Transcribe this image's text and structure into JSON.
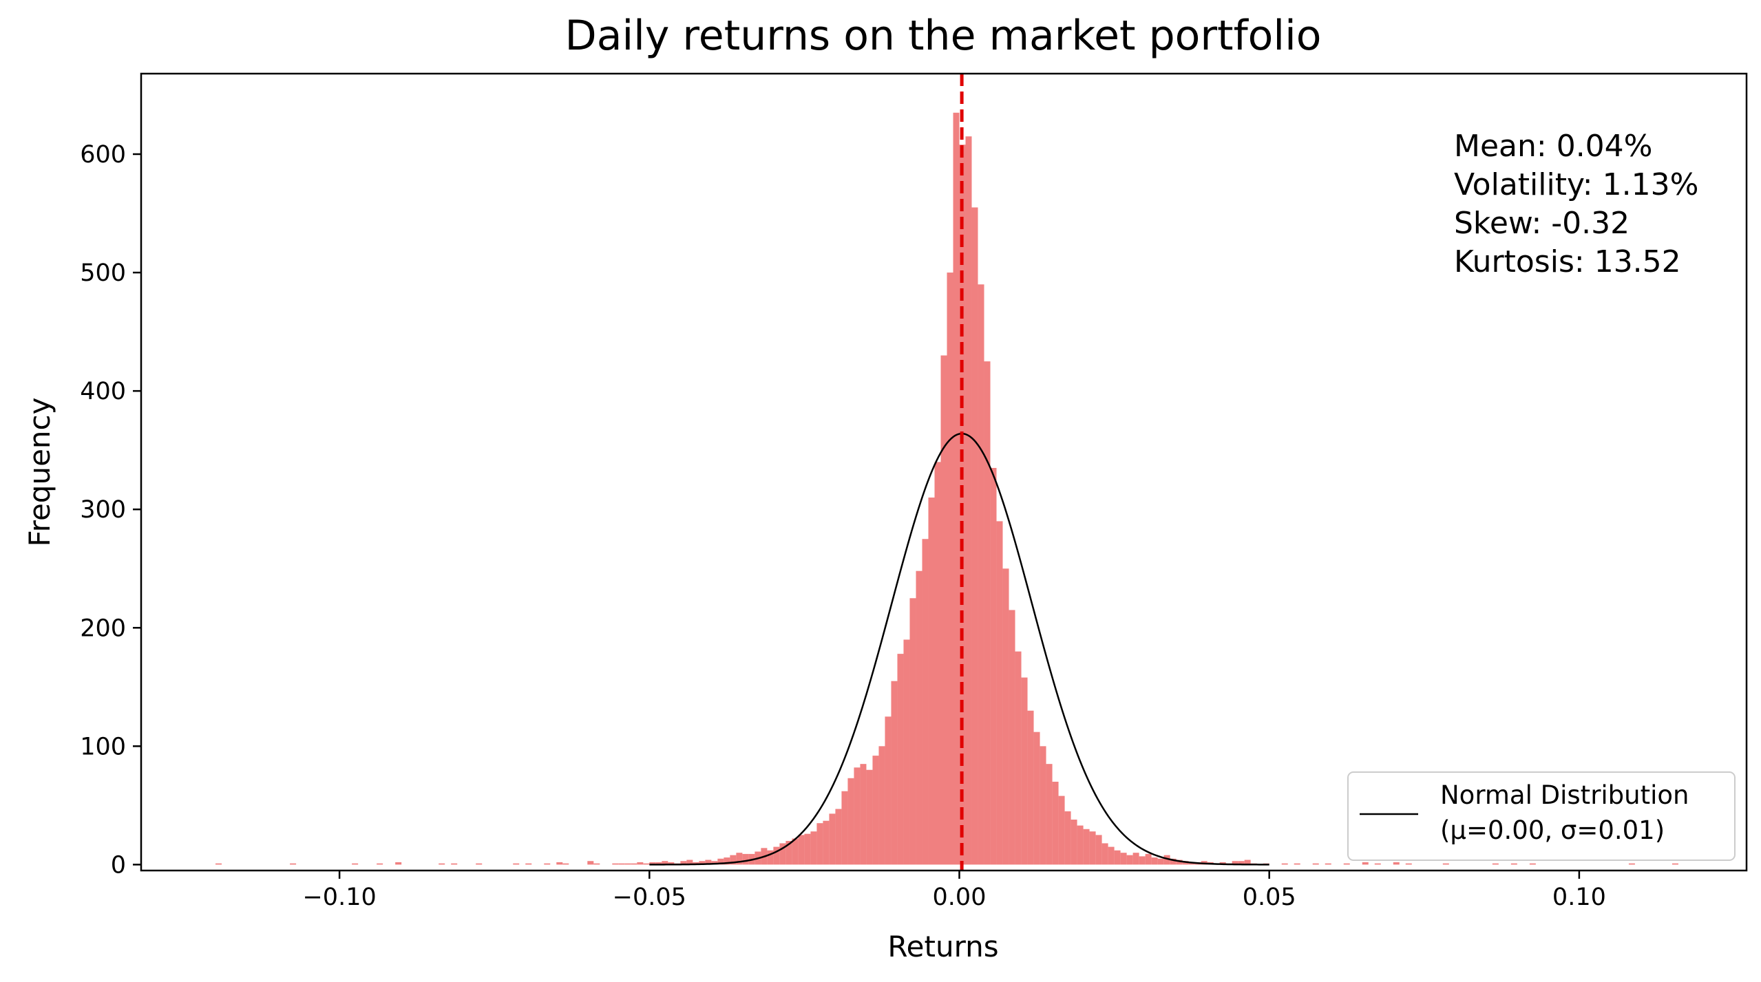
{
  "chart_data": {
    "type": "bar",
    "title": "Daily returns on the market portfolio",
    "xlabel": "Returns",
    "ylabel": "Frequency",
    "xlim": [
      -0.132,
      0.127
    ],
    "ylim": [
      -5,
      668
    ],
    "xticks": [
      {
        "value": -0.1,
        "label": "−0.10"
      },
      {
        "value": -0.05,
        "label": "−0.05"
      },
      {
        "value": 0.0,
        "label": "0.00"
      },
      {
        "value": 0.05,
        "label": "0.05"
      },
      {
        "value": 0.1,
        "label": "0.10"
      }
    ],
    "yticks": [
      {
        "value": 0,
        "label": "0"
      },
      {
        "value": 100,
        "label": "100"
      },
      {
        "value": 200,
        "label": "200"
      },
      {
        "value": 300,
        "label": "300"
      },
      {
        "value": 400,
        "label": "400"
      },
      {
        "value": 500,
        "label": "500"
      },
      {
        "value": 600,
        "label": "600"
      }
    ],
    "grid": false,
    "bar_color": "#f08080",
    "histogram": {
      "bin_width": 0.001,
      "bins": [
        {
          "x": -0.12,
          "count": 1
        },
        {
          "x": -0.108,
          "count": 1
        },
        {
          "x": -0.098,
          "count": 1
        },
        {
          "x": -0.094,
          "count": 1
        },
        {
          "x": -0.091,
          "count": 2
        },
        {
          "x": -0.084,
          "count": 1
        },
        {
          "x": -0.082,
          "count": 1
        },
        {
          "x": -0.078,
          "count": 1
        },
        {
          "x": -0.072,
          "count": 1
        },
        {
          "x": -0.07,
          "count": 1
        },
        {
          "x": -0.067,
          "count": 1
        },
        {
          "x": -0.065,
          "count": 2
        },
        {
          "x": -0.064,
          "count": 1
        },
        {
          "x": -0.06,
          "count": 3
        },
        {
          "x": -0.059,
          "count": 1
        },
        {
          "x": -0.056,
          "count": 1
        },
        {
          "x": -0.055,
          "count": 1
        },
        {
          "x": -0.054,
          "count": 1
        },
        {
          "x": -0.053,
          "count": 1
        },
        {
          "x": -0.052,
          "count": 2
        },
        {
          "x": -0.051,
          "count": 1
        },
        {
          "x": -0.05,
          "count": 2
        },
        {
          "x": -0.049,
          "count": 2
        },
        {
          "x": -0.048,
          "count": 3
        },
        {
          "x": -0.047,
          "count": 2
        },
        {
          "x": -0.046,
          "count": 1
        },
        {
          "x": -0.045,
          "count": 3
        },
        {
          "x": -0.044,
          "count": 4
        },
        {
          "x": -0.043,
          "count": 2
        },
        {
          "x": -0.042,
          "count": 3
        },
        {
          "x": -0.041,
          "count": 4
        },
        {
          "x": -0.04,
          "count": 3
        },
        {
          "x": -0.039,
          "count": 5
        },
        {
          "x": -0.038,
          "count": 6
        },
        {
          "x": -0.037,
          "count": 8
        },
        {
          "x": -0.036,
          "count": 10
        },
        {
          "x": -0.035,
          "count": 9
        },
        {
          "x": -0.034,
          "count": 9
        },
        {
          "x": -0.033,
          "count": 11
        },
        {
          "x": -0.032,
          "count": 14
        },
        {
          "x": -0.031,
          "count": 12
        },
        {
          "x": -0.03,
          "count": 15
        },
        {
          "x": -0.029,
          "count": 18
        },
        {
          "x": -0.028,
          "count": 20
        },
        {
          "x": -0.027,
          "count": 22
        },
        {
          "x": -0.026,
          "count": 25
        },
        {
          "x": -0.025,
          "count": 26
        },
        {
          "x": -0.024,
          "count": 28
        },
        {
          "x": -0.023,
          "count": 35
        },
        {
          "x": -0.022,
          "count": 37
        },
        {
          "x": -0.021,
          "count": 43
        },
        {
          "x": -0.02,
          "count": 47
        },
        {
          "x": -0.019,
          "count": 62
        },
        {
          "x": -0.018,
          "count": 73
        },
        {
          "x": -0.017,
          "count": 82
        },
        {
          "x": -0.016,
          "count": 85
        },
        {
          "x": -0.015,
          "count": 80
        },
        {
          "x": -0.014,
          "count": 92
        },
        {
          "x": -0.013,
          "count": 100
        },
        {
          "x": -0.012,
          "count": 125
        },
        {
          "x": -0.011,
          "count": 155
        },
        {
          "x": -0.01,
          "count": 178
        },
        {
          "x": -0.009,
          "count": 190
        },
        {
          "x": -0.008,
          "count": 225
        },
        {
          "x": -0.007,
          "count": 248
        },
        {
          "x": -0.006,
          "count": 275
        },
        {
          "x": -0.005,
          "count": 310
        },
        {
          "x": -0.004,
          "count": 340
        },
        {
          "x": -0.003,
          "count": 430
        },
        {
          "x": -0.002,
          "count": 500
        },
        {
          "x": -0.001,
          "count": 635
        },
        {
          "x": 0.0,
          "count": 608
        },
        {
          "x": 0.001,
          "count": 615
        },
        {
          "x": 0.002,
          "count": 555
        },
        {
          "x": 0.003,
          "count": 490
        },
        {
          "x": 0.004,
          "count": 425
        },
        {
          "x": 0.005,
          "count": 335
        },
        {
          "x": 0.006,
          "count": 290
        },
        {
          "x": 0.007,
          "count": 250
        },
        {
          "x": 0.008,
          "count": 215
        },
        {
          "x": 0.009,
          "count": 180
        },
        {
          "x": 0.01,
          "count": 158
        },
        {
          "x": 0.011,
          "count": 130
        },
        {
          "x": 0.012,
          "count": 112
        },
        {
          "x": 0.013,
          "count": 100
        },
        {
          "x": 0.014,
          "count": 85
        },
        {
          "x": 0.015,
          "count": 70
        },
        {
          "x": 0.016,
          "count": 58
        },
        {
          "x": 0.017,
          "count": 45
        },
        {
          "x": 0.018,
          "count": 38
        },
        {
          "x": 0.019,
          "count": 33
        },
        {
          "x": 0.02,
          "count": 30
        },
        {
          "x": 0.021,
          "count": 28
        },
        {
          "x": 0.022,
          "count": 25
        },
        {
          "x": 0.023,
          "count": 18
        },
        {
          "x": 0.024,
          "count": 15
        },
        {
          "x": 0.025,
          "count": 12
        },
        {
          "x": 0.026,
          "count": 10
        },
        {
          "x": 0.027,
          "count": 8
        },
        {
          "x": 0.028,
          "count": 10
        },
        {
          "x": 0.029,
          "count": 7
        },
        {
          "x": 0.03,
          "count": 9
        },
        {
          "x": 0.031,
          "count": 6
        },
        {
          "x": 0.032,
          "count": 5
        },
        {
          "x": 0.033,
          "count": 8
        },
        {
          "x": 0.034,
          "count": 5
        },
        {
          "x": 0.035,
          "count": 4
        },
        {
          "x": 0.036,
          "count": 3
        },
        {
          "x": 0.037,
          "count": 2
        },
        {
          "x": 0.038,
          "count": 2
        },
        {
          "x": 0.039,
          "count": 3
        },
        {
          "x": 0.04,
          "count": 2
        },
        {
          "x": 0.041,
          "count": 1
        },
        {
          "x": 0.042,
          "count": 2
        },
        {
          "x": 0.043,
          "count": 1
        },
        {
          "x": 0.044,
          "count": 3
        },
        {
          "x": 0.045,
          "count": 3
        },
        {
          "x": 0.046,
          "count": 4
        },
        {
          "x": 0.047,
          "count": 1
        },
        {
          "x": 0.049,
          "count": 1
        },
        {
          "x": 0.052,
          "count": 1
        },
        {
          "x": 0.054,
          "count": 1
        },
        {
          "x": 0.057,
          "count": 1
        },
        {
          "x": 0.059,
          "count": 1
        },
        {
          "x": 0.062,
          "count": 1
        },
        {
          "x": 0.065,
          "count": 2
        },
        {
          "x": 0.067,
          "count": 1
        },
        {
          "x": 0.07,
          "count": 2
        },
        {
          "x": 0.072,
          "count": 1
        },
        {
          "x": 0.078,
          "count": 1
        },
        {
          "x": 0.086,
          "count": 1
        },
        {
          "x": 0.089,
          "count": 1
        },
        {
          "x": 0.092,
          "count": 1
        },
        {
          "x": 0.108,
          "count": 1
        },
        {
          "x": 0.115,
          "count": 1
        }
      ]
    },
    "normal_curve": {
      "mu": 0.0004,
      "sigma": 0.0113,
      "peak": 364,
      "x_range": [
        -0.05,
        0.05
      ],
      "color": "#000000"
    },
    "mean_line": {
      "x": 0.0004,
      "color": "#e00000",
      "style": "dashed"
    },
    "annotation": {
      "lines": [
        "Mean: 0.04%",
        "Volatility: 1.13%",
        "Skew: -0.32",
        "Kurtosis: 13.52"
      ]
    },
    "legend": {
      "position": "bottom-right",
      "entries": [
        {
          "line1": "Normal Distribution",
          "line2": "(μ=0.00, σ=0.01)",
          "color": "#000000"
        }
      ]
    }
  }
}
